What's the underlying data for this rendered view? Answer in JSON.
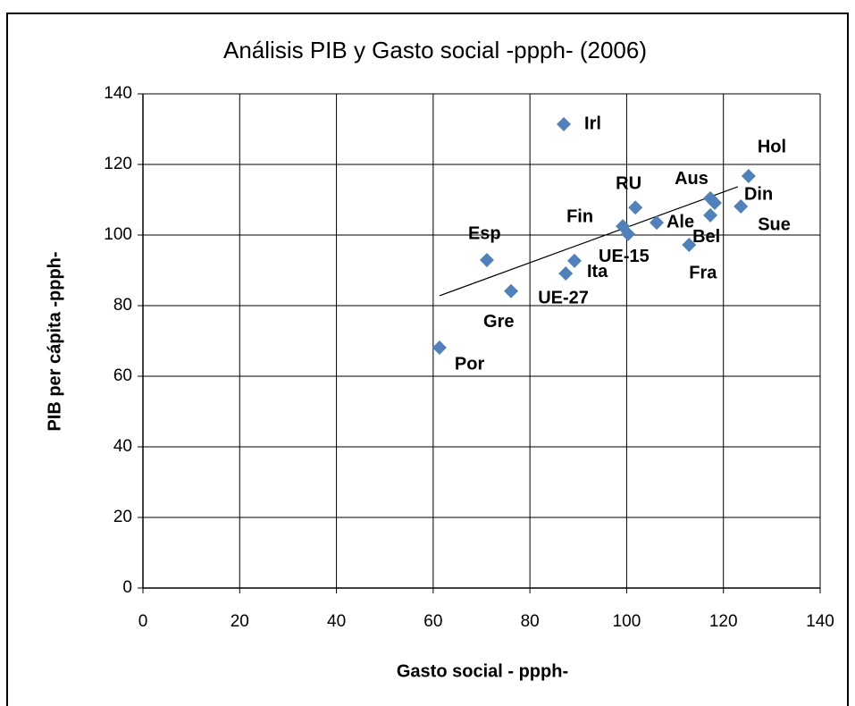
{
  "chart_data": {
    "type": "scatter",
    "title": "Análisis PIB y Gasto social -ppph- (2006)",
    "x_label": "Gasto social - ppph-",
    "y_label": "PIB per cápita -ppph-",
    "labels": [
      "Irl",
      "Hol",
      "Aus",
      "Din",
      "Bel",
      "Sue",
      "Fra",
      "Ale",
      "RU",
      "Fin",
      "UE-15",
      "Ita",
      "UE-27",
      "Gre",
      "Esp",
      "Por"
    ],
    "x": [
      87.0,
      125.2,
      117.3,
      118.2,
      117.3,
      123.6,
      112.9,
      106.2,
      101.8,
      99.2,
      100.3,
      89.2,
      87.4,
      76.1,
      71.1,
      61.3
    ],
    "y": [
      131.4,
      116.7,
      110.4,
      109.1,
      105.6,
      108.1,
      97.2,
      103.5,
      107.8,
      102.5,
      100.3,
      92.7,
      89.1,
      84.1,
      92.9,
      68.1
    ],
    "color": "#4f81bd",
    "trendline": {
      "x": [
        61.3,
        123.0
      ],
      "y": [
        82.8,
        113.7
      ]
    },
    "xlim": [
      0,
      140
    ],
    "ylim": [
      0,
      140
    ],
    "xticks": [
      0,
      20,
      40,
      60,
      80,
      100,
      120,
      140
    ],
    "yticks": [
      0,
      20,
      40,
      60,
      80,
      100,
      120,
      140
    ],
    "grid": true
  }
}
